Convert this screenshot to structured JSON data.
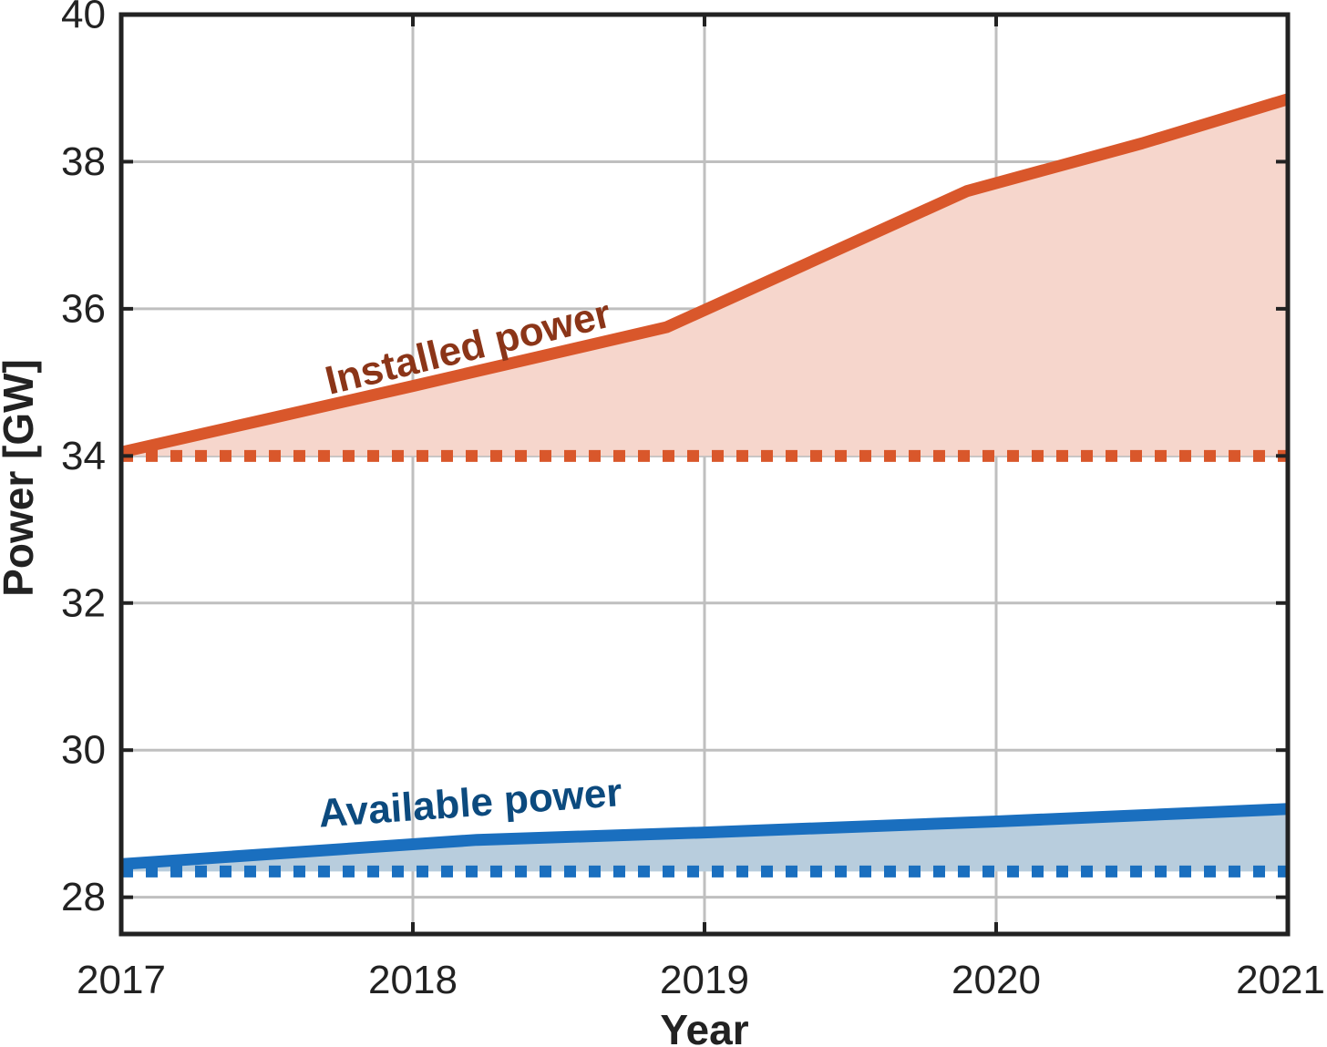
{
  "chart_data": {
    "type": "area",
    "title": "",
    "xlabel": "Year",
    "ylabel": "Power [GW]",
    "xlim": [
      2017,
      2021
    ],
    "ylim": [
      27.5,
      40
    ],
    "x_ticks": [
      2017,
      2018,
      2019,
      2020,
      2021
    ],
    "y_ticks": [
      28,
      30,
      32,
      34,
      36,
      38,
      40
    ],
    "grid": true,
    "series": [
      {
        "name": "Installed power",
        "color": "#d9572b",
        "label_color": "#8b3518",
        "fill": "#f6d6cc",
        "label_anchor": [
          2018.2,
          35.3
        ],
        "label_angle_data": [
          [
            2017.5,
            34.5
          ],
          [
            2018.85,
            35.8
          ]
        ],
        "baseline": 34.0,
        "x": [
          2017.0,
          2017.5,
          2018.0,
          2018.87,
          2019.9,
          2020.5,
          2021.0
        ],
        "y": [
          34.05,
          34.5,
          34.95,
          35.75,
          37.6,
          38.25,
          38.85
        ]
      },
      {
        "name": "Available power",
        "color": "#1a6fbf",
        "label_color": "#0c4a7e",
        "fill": "#b8cddd",
        "label_anchor": [
          2018.2,
          29.1
        ],
        "label_angle_data": [
          [
            2017.5,
            28.6
          ],
          [
            2018.5,
            28.88
          ]
        ],
        "baseline": 28.35,
        "x": [
          2017.0,
          2018.22,
          2019.0,
          2020.0,
          2021.0
        ],
        "y": [
          28.45,
          28.78,
          28.88,
          29.03,
          29.2
        ]
      }
    ]
  }
}
